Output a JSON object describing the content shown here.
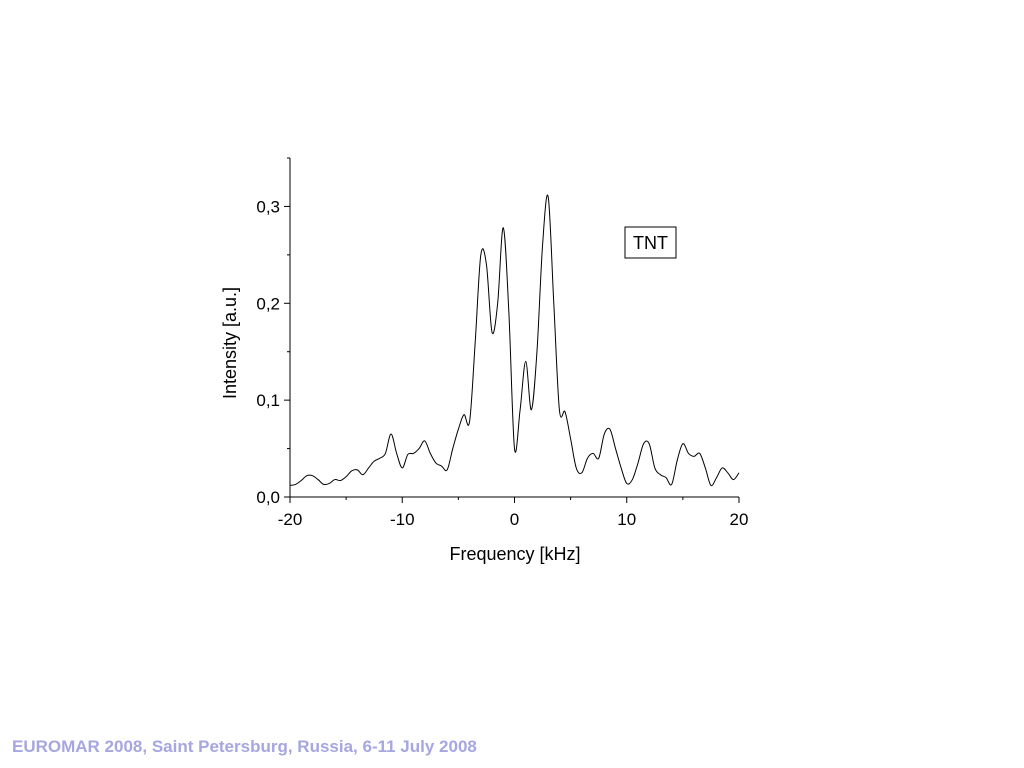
{
  "footer": {
    "text": "EUROMAR 2008, Saint Petersburg, Russia, 6-11 July 2008",
    "color": "#a6a6e0"
  },
  "chart_data": {
    "type": "line",
    "xlabel": "Frequency [kHz]",
    "ylabel": "Intensity [a.u.]",
    "xlim": [
      -20,
      20
    ],
    "ylim": [
      0,
      0.35
    ],
    "x_ticks": [
      -20,
      -10,
      0,
      10,
      20
    ],
    "x_tick_labels": [
      "-20",
      "-10",
      "0",
      "10",
      "20"
    ],
    "y_ticks": [
      0,
      0.1,
      0.2,
      0.3
    ],
    "y_tick_labels": [
      "0,0",
      "0,1",
      "0,2",
      "0,3"
    ],
    "grid": false,
    "legend": {
      "text": "TNT",
      "placement": "top-right"
    },
    "line_color": "#000000",
    "series": [
      {
        "x": [
          -20,
          -19.5,
          -19,
          -18.5,
          -18,
          -17.5,
          -17,
          -16.5,
          -16,
          -15.5,
          -15,
          -14.5,
          -14,
          -13.5,
          -13,
          -12.5,
          -12,
          -11.5,
          -11,
          -10.5,
          -10,
          -9.5,
          -9,
          -8.5,
          -8,
          -7.5,
          -7,
          -6.5,
          -6,
          -5.5,
          -5,
          -4.5,
          -4,
          -3.5,
          -3,
          -2.5,
          -2,
          -1.5,
          -1,
          -0.5,
          0,
          0.5,
          1,
          1.5,
          2,
          2.5,
          3,
          3.5,
          4,
          4.5,
          5,
          5.5,
          6,
          6.5,
          7,
          7.5,
          8,
          8.5,
          9,
          9.5,
          10,
          10.5,
          11,
          11.5,
          12,
          12.5,
          13,
          13.5,
          14,
          14.5,
          15,
          15.5,
          16,
          16.5,
          17,
          17.5,
          18,
          18.5,
          19,
          19.5,
          20
        ],
        "y": [
          0.012,
          0.013,
          0.017,
          0.022,
          0.022,
          0.018,
          0.013,
          0.014,
          0.018,
          0.017,
          0.021,
          0.027,
          0.028,
          0.023,
          0.03,
          0.037,
          0.04,
          0.045,
          0.065,
          0.045,
          0.03,
          0.044,
          0.045,
          0.05,
          0.058,
          0.045,
          0.035,
          0.032,
          0.028,
          0.05,
          0.07,
          0.085,
          0.078,
          0.16,
          0.25,
          0.24,
          0.17,
          0.2,
          0.278,
          0.19,
          0.05,
          0.09,
          0.14,
          0.09,
          0.15,
          0.26,
          0.31,
          0.2,
          0.09,
          0.088,
          0.06,
          0.03,
          0.025,
          0.04,
          0.045,
          0.04,
          0.065,
          0.07,
          0.05,
          0.03,
          0.014,
          0.018,
          0.035,
          0.055,
          0.055,
          0.03,
          0.023,
          0.02,
          0.013,
          0.038,
          0.055,
          0.045,
          0.042,
          0.045,
          0.03,
          0.012,
          0.02,
          0.03,
          0.025,
          0.018,
          0.025
        ]
      }
    ]
  }
}
